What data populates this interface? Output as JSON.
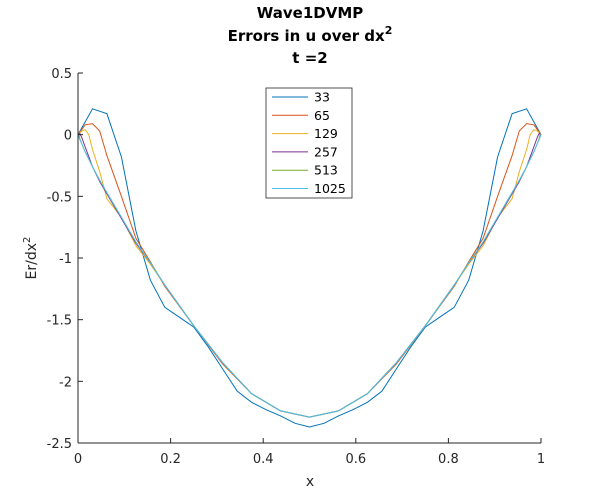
{
  "chart_data": {
    "type": "line",
    "title_lines": [
      "Wave1DVMP",
      "Errors in u over dx",
      "t =2"
    ],
    "title_superscript": "2",
    "xlabel": "x",
    "ylabel": "Er/dx",
    "ylabel_superscript": "2",
    "xlim": [
      0,
      1
    ],
    "ylim": [
      -2.5,
      0.5
    ],
    "x_ticks": [
      "0",
      "0.2",
      "0.4",
      "0.6",
      "0.8",
      "1"
    ],
    "y_ticks": [
      "0.5",
      "0",
      "-0.5",
      "-1",
      "-1.5",
      "-2",
      "-2.5"
    ],
    "legend_position": "top-center",
    "series": [
      {
        "name": "33",
        "color": "#0072BD",
        "x": [
          0,
          0.0313,
          0.0625,
          0.0938,
          0.125,
          0.1563,
          0.1875,
          0.2188,
          0.25,
          0.2813,
          0.3125,
          0.3438,
          0.375,
          0.4063,
          0.4375,
          0.4688,
          0.5,
          0.5313,
          0.5625,
          0.5938,
          0.625,
          0.6563,
          0.6875,
          0.7188,
          0.75,
          0.7813,
          0.8125,
          0.8438,
          0.875,
          0.9063,
          0.9375,
          0.9688,
          1
        ],
        "y": [
          0,
          0.21,
          0.17,
          -0.18,
          -0.78,
          -1.18,
          -1.4,
          -1.48,
          -1.56,
          -1.72,
          -1.9,
          -2.08,
          -2.17,
          -2.23,
          -2.28,
          -2.34,
          -2.37,
          -2.34,
          -2.28,
          -2.23,
          -2.17,
          -2.08,
          -1.9,
          -1.72,
          -1.56,
          -1.48,
          -1.4,
          -1.18,
          -0.78,
          -0.18,
          0.17,
          0.21,
          0
        ]
      },
      {
        "name": "65",
        "color": "#D95319",
        "x": [
          0,
          0.0156,
          0.0313,
          0.0469,
          0.0625,
          0.0938,
          0.125,
          0.1563,
          0.1875,
          0.25,
          0.3125,
          0.375,
          0.4375,
          0.5,
          0.5625,
          0.625,
          0.6875,
          0.75,
          0.8125,
          0.8438,
          0.875,
          0.9063,
          0.9375,
          0.9531,
          0.9688,
          0.9844,
          1
        ],
        "y": [
          0,
          0.08,
          0.09,
          0.03,
          -0.17,
          -0.5,
          -0.84,
          -1.03,
          -1.23,
          -1.55,
          -1.86,
          -2.1,
          -2.24,
          -2.29,
          -2.24,
          -2.1,
          -1.86,
          -1.55,
          -1.23,
          -1.03,
          -0.84,
          -0.5,
          -0.17,
          0.03,
          0.09,
          0.08,
          0
        ]
      },
      {
        "name": "129",
        "color": "#EDB120",
        "x": [
          0,
          0.0078,
          0.0156,
          0.0234,
          0.0313,
          0.0469,
          0.0625,
          0.0938,
          0.125,
          0.1563,
          0.1875,
          0.25,
          0.3125,
          0.375,
          0.4375,
          0.5,
          0.5625,
          0.625,
          0.6875,
          0.75,
          0.8125,
          0.8438,
          0.875,
          0.9063,
          0.9375,
          0.9531,
          0.9688,
          0.9766,
          0.9844,
          0.9922,
          1
        ],
        "y": [
          0,
          0.03,
          0.04,
          0.0,
          -0.12,
          -0.3,
          -0.52,
          -0.67,
          -0.9,
          -1.05,
          -1.22,
          -1.55,
          -1.85,
          -2.1,
          -2.24,
          -2.29,
          -2.24,
          -2.1,
          -1.85,
          -1.55,
          -1.22,
          -1.05,
          -0.9,
          -0.67,
          -0.52,
          -0.3,
          -0.12,
          0.0,
          0.04,
          0.03,
          0
        ]
      },
      {
        "name": "257",
        "color": "#7E2F8E",
        "x": [
          0,
          0.0039,
          0.0078,
          0.0156,
          0.0313,
          0.0469,
          0.0625,
          0.0938,
          0.125,
          0.1563,
          0.1875,
          0.25,
          0.3125,
          0.375,
          0.4375,
          0.5,
          0.5625,
          0.625,
          0.6875,
          0.75,
          0.8125,
          0.8438,
          0.875,
          0.9063,
          0.9375,
          0.9531,
          0.9688,
          0.9844,
          0.9922,
          0.9961,
          1
        ],
        "y": [
          0,
          0.01,
          -0.02,
          -0.1,
          -0.26,
          -0.38,
          -0.48,
          -0.68,
          -0.88,
          -1.04,
          -1.22,
          -1.55,
          -1.85,
          -2.1,
          -2.24,
          -2.29,
          -2.24,
          -2.1,
          -1.85,
          -1.55,
          -1.22,
          -1.04,
          -0.88,
          -0.68,
          -0.48,
          -0.38,
          -0.26,
          -0.1,
          -0.02,
          0.01,
          0
        ]
      },
      {
        "name": "513",
        "color": "#77AC30",
        "x": [
          0,
          0.002,
          0.0039,
          0.0078,
          0.0156,
          0.0313,
          0.0469,
          0.0625,
          0.0938,
          0.125,
          0.1563,
          0.1875,
          0.25,
          0.3125,
          0.375,
          0.4375,
          0.5,
          0.5625,
          0.625,
          0.6875,
          0.75,
          0.8125,
          0.8438,
          0.875,
          0.9063,
          0.9375,
          0.9531,
          0.9688,
          0.9844,
          0.9922,
          0.9961,
          0.998,
          1
        ],
        "y": [
          0,
          0.0,
          -0.03,
          -0.07,
          -0.14,
          -0.26,
          -0.37,
          -0.47,
          -0.67,
          -0.87,
          -1.04,
          -1.22,
          -1.55,
          -1.85,
          -2.1,
          -2.24,
          -2.29,
          -2.24,
          -2.1,
          -1.85,
          -1.55,
          -1.22,
          -1.04,
          -0.87,
          -0.67,
          -0.47,
          -0.37,
          -0.26,
          -0.14,
          -0.07,
          -0.03,
          0.0,
          0
        ]
      },
      {
        "name": "1025",
        "color": "#4DBEEE",
        "x": [
          0,
          0.001,
          0.002,
          0.0039,
          0.0078,
          0.0156,
          0.0313,
          0.0469,
          0.0625,
          0.0938,
          0.125,
          0.1563,
          0.1875,
          0.25,
          0.3125,
          0.375,
          0.4375,
          0.5,
          0.5625,
          0.625,
          0.6875,
          0.75,
          0.8125,
          0.8438,
          0.875,
          0.9063,
          0.9375,
          0.9531,
          0.9688,
          0.9844,
          0.9922,
          0.9961,
          0.998,
          0.999,
          1
        ],
        "y": [
          0,
          -0.01,
          -0.02,
          -0.04,
          -0.07,
          -0.14,
          -0.26,
          -0.37,
          -0.47,
          -0.67,
          -0.87,
          -1.04,
          -1.22,
          -1.55,
          -1.85,
          -2.1,
          -2.24,
          -2.29,
          -2.24,
          -2.1,
          -1.85,
          -1.55,
          -1.22,
          -1.04,
          -0.87,
          -0.67,
          -0.47,
          -0.37,
          -0.26,
          -0.14,
          -0.07,
          -0.04,
          -0.02,
          -0.01,
          0
        ]
      }
    ]
  }
}
